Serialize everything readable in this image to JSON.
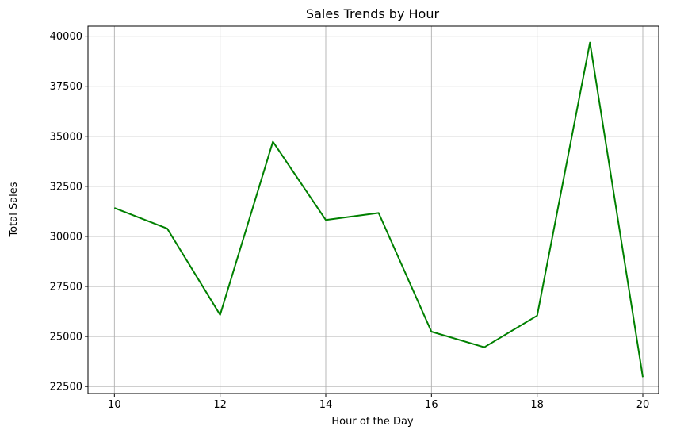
{
  "chart_data": {
    "type": "line",
    "title": "Sales Trends by Hour",
    "xlabel": "Hour of the Day",
    "ylabel": "Total Sales",
    "xlim": [
      9.5,
      20.3
    ],
    "ylim": [
      22150,
      40500
    ],
    "xticks": [
      10,
      12,
      14,
      16,
      18,
      20
    ],
    "xtick_labels": [
      "10",
      "12",
      "14",
      "16",
      "18",
      "20"
    ],
    "yticks": [
      22500,
      25000,
      27500,
      30000,
      32500,
      35000,
      37500,
      40000
    ],
    "ytick_labels": [
      "22500",
      "25000",
      "27500",
      "30000",
      "32500",
      "35000",
      "37500",
      "40000"
    ],
    "grid": true,
    "series": [
      {
        "color": "#008000",
        "x": [
          10,
          11,
          12,
          13,
          14,
          15,
          16,
          17,
          18,
          19,
          20
        ],
        "values": [
          31420,
          30390,
          26080,
          34730,
          30820,
          31170,
          25240,
          24460,
          26040,
          39680,
          22970
        ]
      }
    ]
  }
}
